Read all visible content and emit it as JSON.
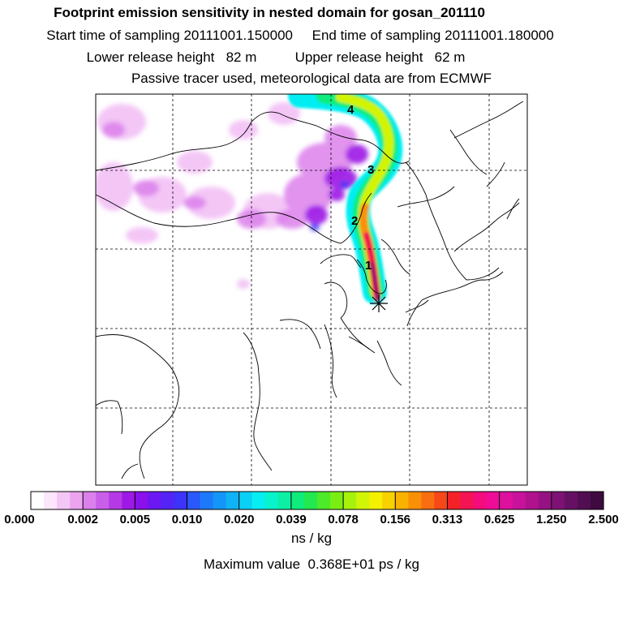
{
  "header": {
    "title": "Footprint emission sensitivity in nested domain for gosan_201110",
    "start_label": "Start time of sampling",
    "start_value": "20111001.150000",
    "end_label": "End time of sampling",
    "end_value": "20111001.180000",
    "lower_label": "Lower release height",
    "lower_value": "82 m",
    "upper_label": "Upper release height",
    "upper_value": "62 m",
    "note": "Passive tracer used, meteorological data are from ECMWF"
  },
  "map": {
    "day_markers": [
      "1",
      "2",
      "3",
      "4"
    ],
    "receptor_symbol": "*"
  },
  "colorbar": {
    "labels": [
      "0.000",
      "0.002",
      "0.005",
      "0.010",
      "0.020",
      "0.039",
      "0.078",
      "0.156",
      "0.313",
      "0.625",
      "1.250",
      "2.500"
    ],
    "colors": [
      "#ffffff",
      "#fbe6fb",
      "#f4c6f6",
      "#eca4f0",
      "#dc80ec",
      "#c95ee8",
      "#b53ae6",
      "#9e18e6",
      "#8a10ec",
      "#6c18f2",
      "#5424f6",
      "#3c34f8",
      "#2a58fa",
      "#1c7afa",
      "#1496f8",
      "#10b2f6",
      "#0ad0f6",
      "#06eef2",
      "#08f2cc",
      "#0cf0a4",
      "#10ec7c",
      "#24e850",
      "#4cea28",
      "#7aee14",
      "#a6f20c",
      "#d2f406",
      "#f4f000",
      "#f8d200",
      "#fab200",
      "#fa9008",
      "#f86e10",
      "#f64818",
      "#f42228",
      "#f41454",
      "#f40c7c",
      "#ee0c98",
      "#de109e",
      "#c8129c",
      "#b0128e",
      "#961282",
      "#7e1274",
      "#661064",
      "#520e52",
      "#3e0a40"
    ],
    "unit": "ns / kg"
  },
  "maximum": {
    "label": "Maximum value",
    "value": "0.368E+01 ps / kg"
  }
}
